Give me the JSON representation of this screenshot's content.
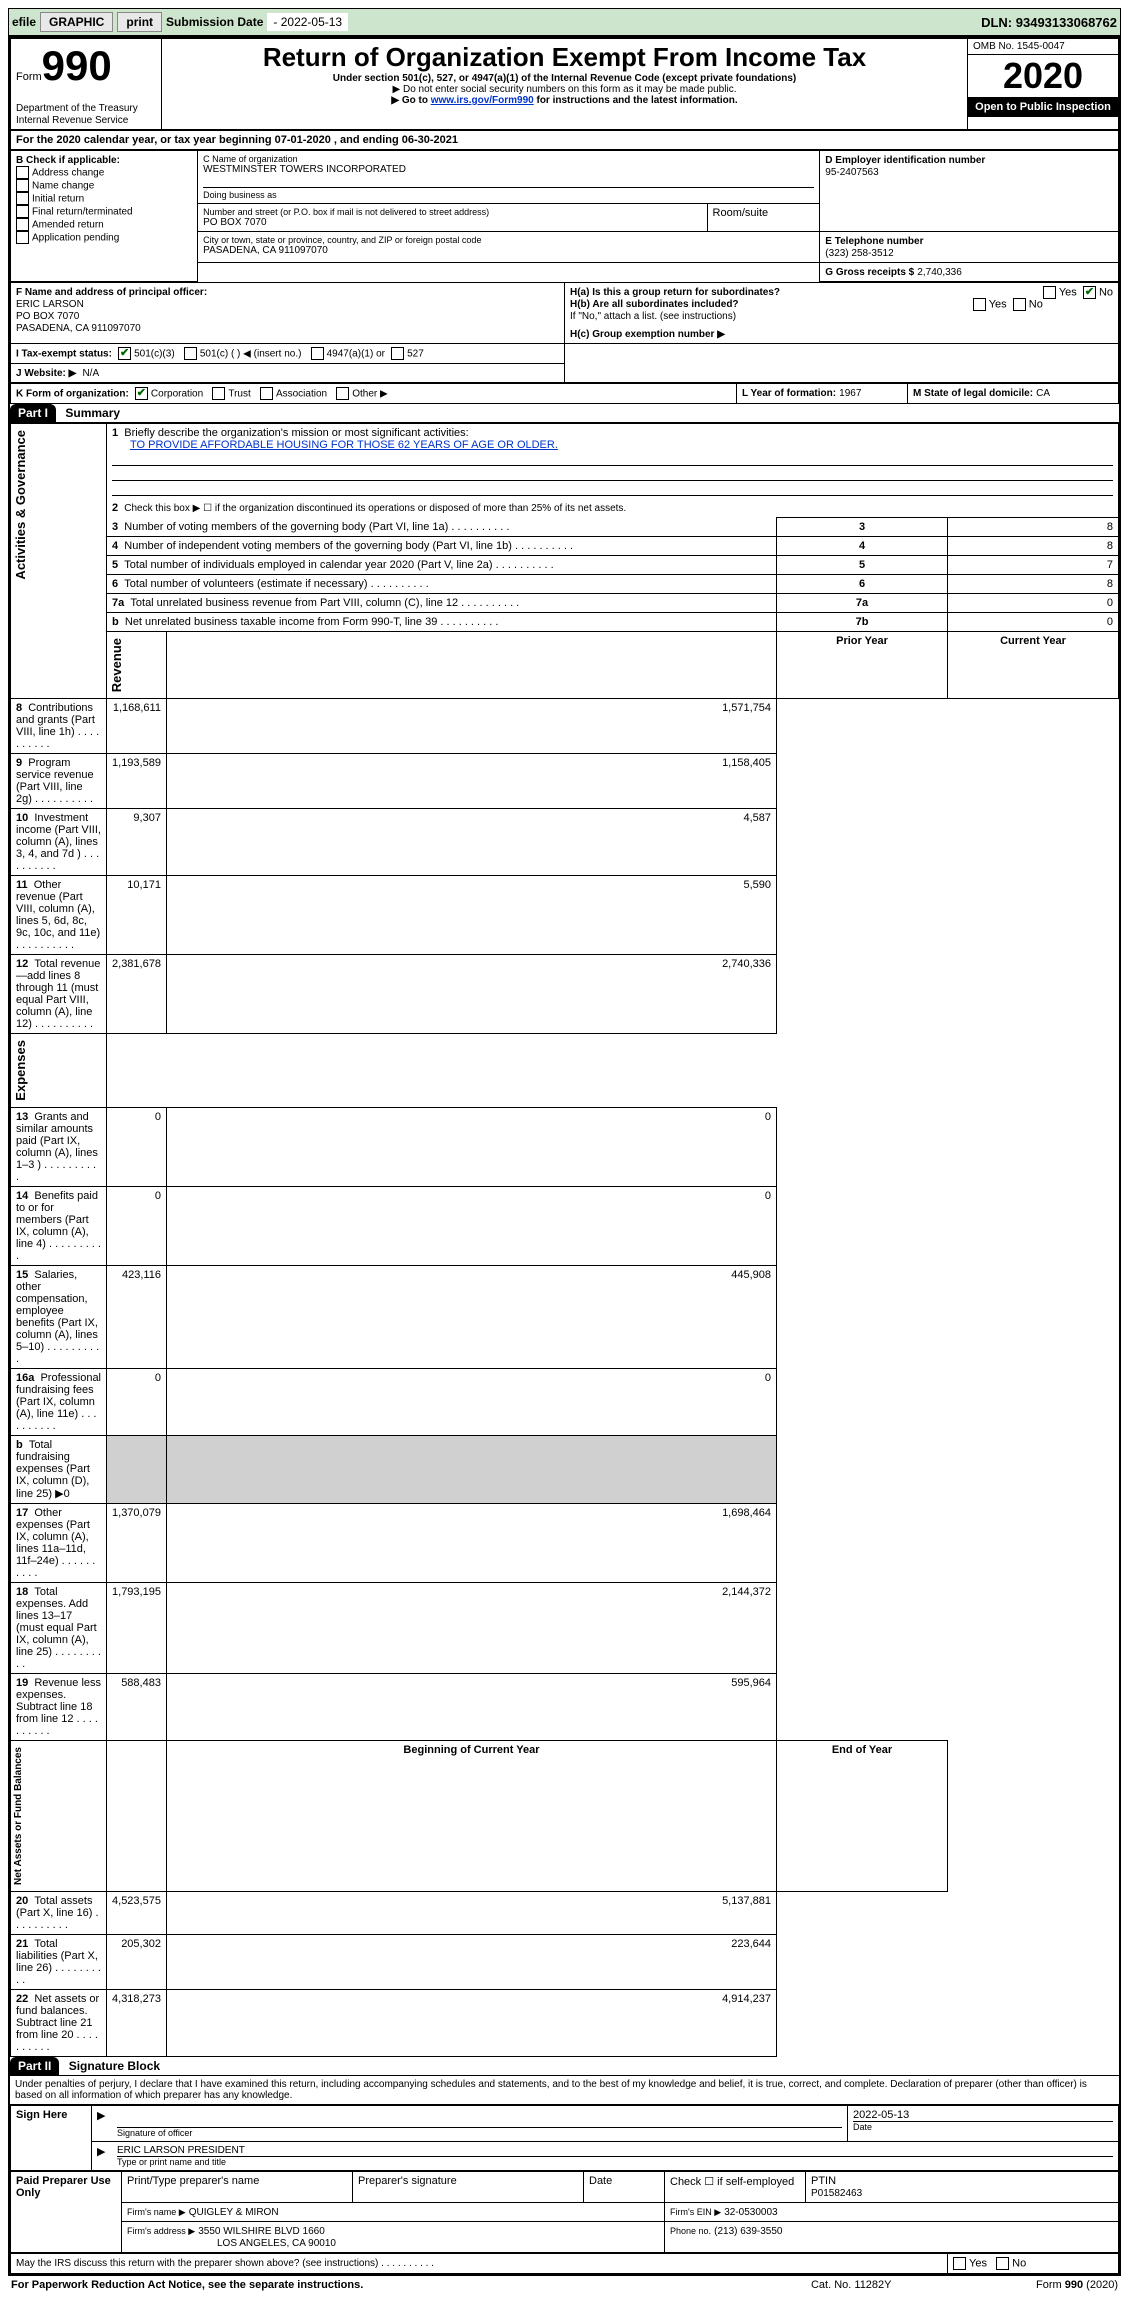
{
  "topbar": {
    "efile": "efile",
    "graphic": "GRAPHIC",
    "print_btn": "print",
    "submission_label": "Submission Date",
    "submission_date": "- 2022-05-13",
    "dln_label": "DLN:",
    "dln": "93493133068762"
  },
  "header_left": {
    "form_word": "Form",
    "form_number": "990",
    "dept": "Department of the Treasury",
    "irs": "Internal Revenue Service"
  },
  "header_mid": {
    "title": "Return of Organization Exempt From Income Tax",
    "sub1": "Under section 501(c), 527, or 4947(a)(1) of the Internal Revenue Code (except private foundations)",
    "sub2": "▶ Do not enter social security numbers on this form as it may be made public.",
    "sub3a": "▶ Go to ",
    "sub3_link": "www.irs.gov/Form990",
    "sub3b": " for instructions and the latest information."
  },
  "header_right": {
    "omb": "OMB No. 1545-0047",
    "year": "2020",
    "open": "Open to Public Inspection"
  },
  "section_a": {
    "line": "For the 2020 calendar year, or tax year beginning 07-01-2020    , and ending 06-30-2021",
    "b_label": "B Check if applicable:",
    "b_items": [
      "Address change",
      "Name change",
      "Initial return",
      "Final return/terminated",
      "Amended return",
      "Application pending"
    ],
    "c_label": "C Name of organization",
    "c_name": "WESTMINSTER TOWERS INCORPORATED",
    "dba_label": "Doing business as",
    "addr_label": "Number and street (or P.O. box if mail is not delivered to street address)",
    "room_label": "Room/suite",
    "addr": "PO BOX 7070",
    "city_label": "City or town, state or province, country, and ZIP or foreign postal code",
    "city": "PASADENA, CA  911097070",
    "d_label": "D Employer identification number",
    "d_ein": "95-2407563",
    "e_label": "E Telephone number",
    "e_phone": "(323) 258-3512",
    "g_label": "G Gross receipts $",
    "g_amount": "2,740,336",
    "f_label": "F  Name and address of principal officer:",
    "f_name": "ERIC LARSON",
    "f_addr1": "PO BOX 7070",
    "f_addr2": "PASADENA, CA  911097070",
    "ha_label": "H(a)  Is this a group return for subordinates?",
    "hb_label": "H(b)  Are all subordinates included?",
    "h_note": "If \"No,\" attach a list. (see instructions)",
    "hc_label": "H(c)  Group exemption number ▶",
    "yes": "Yes",
    "no": "No",
    "i_label": "I  Tax-exempt status:",
    "i_501c3": "501(c)(3)",
    "i_501c": "501(c) (   ) ◀ (insert no.)",
    "i_4947": "4947(a)(1) or",
    "i_527": "527",
    "j_label": "J  Website: ▶",
    "j_val": "N/A",
    "k_label": "K Form of organization:",
    "k_corp": "Corporation",
    "k_trust": "Trust",
    "k_assoc": "Association",
    "k_other": "Other ▶",
    "l_label": "L Year of formation:",
    "l_val": "1967",
    "m_label": "M State of legal domicile:",
    "m_val": "CA"
  },
  "part1": {
    "label": "Part I",
    "title": "Summary",
    "q1": "Briefly describe the organization's mission or most significant activities:",
    "q1_ans": "TO PROVIDE AFFORDABLE HOUSING FOR THOSE 62 YEARS OF AGE OR OLDER.",
    "q2": "Check this box ▶ ☐ if the organization discontinued its operations or disposed of more than 25% of its net assets.",
    "side_gov": "Activities & Governance",
    "side_rev": "Revenue",
    "side_exp": "Expenses",
    "side_net": "Net Assets or Fund Balances",
    "rows_gov": [
      {
        "n": "3",
        "t": "Number of voting members of the governing body (Part VI, line 1a)",
        "box": "3",
        "v": "8"
      },
      {
        "n": "4",
        "t": "Number of independent voting members of the governing body (Part VI, line 1b)",
        "box": "4",
        "v": "8"
      },
      {
        "n": "5",
        "t": "Total number of individuals employed in calendar year 2020 (Part V, line 2a)",
        "box": "5",
        "v": "7"
      },
      {
        "n": "6",
        "t": "Total number of volunteers (estimate if necessary)",
        "box": "6",
        "v": "8"
      },
      {
        "n": "7a",
        "t": "Total unrelated business revenue from Part VIII, column (C), line 12",
        "box": "7a",
        "v": "0"
      },
      {
        "n": "b",
        "t": "Net unrelated business taxable income from Form 990-T, line 39",
        "box": "7b",
        "v": "0"
      }
    ],
    "col_prior": "Prior Year",
    "col_current": "Current Year",
    "rows_rev": [
      {
        "n": "8",
        "t": "Contributions and grants (Part VIII, line 1h)",
        "p": "1,168,611",
        "c": "1,571,754"
      },
      {
        "n": "9",
        "t": "Program service revenue (Part VIII, line 2g)",
        "p": "1,193,589",
        "c": "1,158,405"
      },
      {
        "n": "10",
        "t": "Investment income (Part VIII, column (A), lines 3, 4, and 7d )",
        "p": "9,307",
        "c": "4,587"
      },
      {
        "n": "11",
        "t": "Other revenue (Part VIII, column (A), lines 5, 6d, 8c, 9c, 10c, and 11e)",
        "p": "10,171",
        "c": "5,590"
      },
      {
        "n": "12",
        "t": "Total revenue—add lines 8 through 11 (must equal Part VIII, column (A), line 12)",
        "p": "2,381,678",
        "c": "2,740,336"
      }
    ],
    "rows_exp": [
      {
        "n": "13",
        "t": "Grants and similar amounts paid (Part IX, column (A), lines 1–3 )",
        "p": "0",
        "c": "0"
      },
      {
        "n": "14",
        "t": "Benefits paid to or for members (Part IX, column (A), line 4)",
        "p": "0",
        "c": "0"
      },
      {
        "n": "15",
        "t": "Salaries, other compensation, employee benefits (Part IX, column (A), lines 5–10)",
        "p": "423,116",
        "c": "445,908"
      },
      {
        "n": "16a",
        "t": "Professional fundraising fees (Part IX, column (A), line 11e)",
        "p": "0",
        "c": "0"
      },
      {
        "n": "b",
        "t": "Total fundraising expenses (Part IX, column (D), line 25) ▶0",
        "p": "",
        "c": "",
        "shade": true
      },
      {
        "n": "17",
        "t": "Other expenses (Part IX, column (A), lines 11a–11d, 11f–24e)",
        "p": "1,370,079",
        "c": "1,698,464"
      },
      {
        "n": "18",
        "t": "Total expenses. Add lines 13–17 (must equal Part IX, column (A), line 25)",
        "p": "1,793,195",
        "c": "2,144,372"
      },
      {
        "n": "19",
        "t": "Revenue less expenses. Subtract line 18 from line 12",
        "p": "588,483",
        "c": "595,964"
      }
    ],
    "col_begin": "Beginning of Current Year",
    "col_end": "End of Year",
    "rows_net": [
      {
        "n": "20",
        "t": "Total assets (Part X, line 16)",
        "p": "4,523,575",
        "c": "5,137,881"
      },
      {
        "n": "21",
        "t": "Total liabilities (Part X, line 26)",
        "p": "205,302",
        "c": "223,644"
      },
      {
        "n": "22",
        "t": "Net assets or fund balances. Subtract line 21 from line 20",
        "p": "4,318,273",
        "c": "4,914,237"
      }
    ]
  },
  "part2": {
    "label": "Part II",
    "title": "Signature Block",
    "penalties": "Under penalties of perjury, I declare that I have examined this return, including accompanying schedules and statements, and to the best of my knowledge and belief, it is true, correct, and complete. Declaration of preparer (other than officer) is based on all information of which preparer has any knowledge.",
    "sign_here": "Sign Here",
    "sig_officer": "Signature of officer",
    "sig_date": "2022-05-13",
    "date_lbl": "Date",
    "officer_name": "ERIC LARSON  PRESIDENT",
    "type_lbl": "Type or print name and title",
    "paid": "Paid Preparer Use Only",
    "col_printtype": "Print/Type preparer's name",
    "col_prepsig": "Preparer's signature",
    "col_date": "Date",
    "col_check": "Check ☐ if self-employed",
    "col_ptin": "PTIN",
    "ptin": "P01582463",
    "firm_name_lbl": "Firm's name      ▶",
    "firm_name": "QUIGLEY & MIRON",
    "firm_ein_lbl": "Firm's EIN ▶",
    "firm_ein": "32-0530003",
    "firm_addr_lbl": "Firm's address ▶",
    "firm_addr1": "3550 WILSHIRE BLVD 1660",
    "firm_addr2": "LOS ANGELES, CA  90010",
    "phone_lbl": "Phone no.",
    "phone": "(213) 639-3550",
    "discuss": "May the IRS discuss this return with the preparer shown above? (see instructions)"
  },
  "footer": {
    "pra": "For Paperwork Reduction Act Notice, see the separate instructions.",
    "cat": "Cat. No. 11282Y",
    "formver": "Form 990 (2020)"
  }
}
